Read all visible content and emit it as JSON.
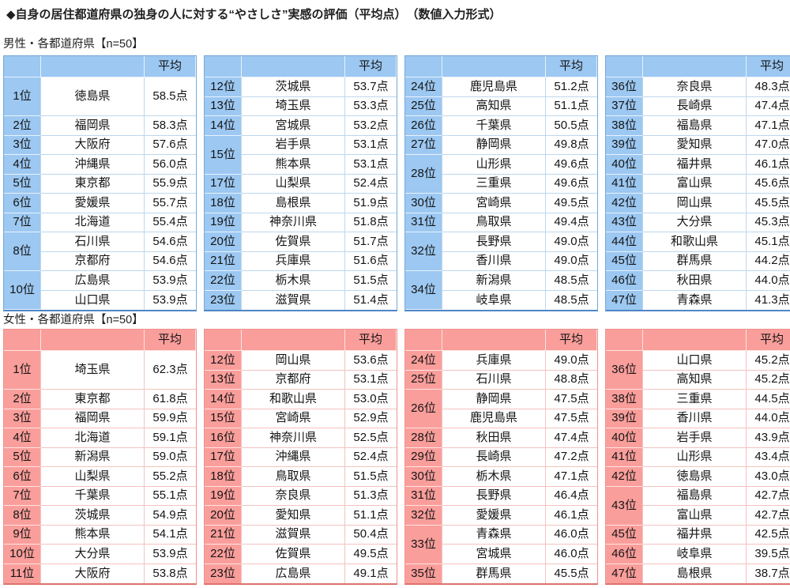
{
  "title": "◆自身の居住都道府県の独身の人に対する“やさしさ”実感の評価（平均点）　（数値入力形式）",
  "sections": [
    {
      "id": "male",
      "label": "男性・各都道府県【n=50】",
      "average_header": "平均",
      "colors": {
        "accent": "#9CC8F2",
        "grid": "#BDD7EE",
        "rank_separator": "#E8F2FC",
        "outer": "#4E86C6",
        "outer_light": "#74A9DC"
      },
      "tables": [
        {
          "groups": [
            {
              "rank": "1位",
              "tall": true,
              "rows": [
                {
                  "pref": "徳島県",
                  "score": "58.5点"
                }
              ]
            },
            {
              "rank": "2位",
              "rows": [
                {
                  "pref": "福岡県",
                  "score": "58.3点"
                }
              ]
            },
            {
              "rank": "3位",
              "rows": [
                {
                  "pref": "大阪府",
                  "score": "57.6点"
                }
              ]
            },
            {
              "rank": "4位",
              "rows": [
                {
                  "pref": "沖縄県",
                  "score": "56.0点"
                }
              ]
            },
            {
              "rank": "5位",
              "rows": [
                {
                  "pref": "東京都",
                  "score": "55.9点"
                }
              ]
            },
            {
              "rank": "6位",
              "rows": [
                {
                  "pref": "愛媛県",
                  "score": "55.7点"
                }
              ]
            },
            {
              "rank": "7位",
              "rows": [
                {
                  "pref": "北海道",
                  "score": "55.4点"
                }
              ]
            },
            {
              "rank": "8位",
              "rows": [
                {
                  "pref": "石川県",
                  "score": "54.6点"
                },
                {
                  "pref": "京都府",
                  "score": "54.6点"
                }
              ]
            },
            {
              "rank": "10位",
              "rows": [
                {
                  "pref": "広島県",
                  "score": "53.9点"
                },
                {
                  "pref": "山口県",
                  "score": "53.9点"
                }
              ]
            }
          ]
        },
        {
          "groups": [
            {
              "rank": "12位",
              "rows": [
                {
                  "pref": "茨城県",
                  "score": "53.7点"
                }
              ]
            },
            {
              "rank": "13位",
              "rows": [
                {
                  "pref": "埼玉県",
                  "score": "53.3点"
                }
              ]
            },
            {
              "rank": "14位",
              "rows": [
                {
                  "pref": "宮城県",
                  "score": "53.2点"
                }
              ]
            },
            {
              "rank": "15位",
              "rows": [
                {
                  "pref": "岩手県",
                  "score": "53.1点"
                },
                {
                  "pref": "熊本県",
                  "score": "53.1点"
                }
              ]
            },
            {
              "rank": "17位",
              "rows": [
                {
                  "pref": "山梨県",
                  "score": "52.4点"
                }
              ]
            },
            {
              "rank": "18位",
              "rows": [
                {
                  "pref": "島根県",
                  "score": "51.9点"
                }
              ]
            },
            {
              "rank": "19位",
              "rows": [
                {
                  "pref": "神奈川県",
                  "score": "51.8点"
                }
              ]
            },
            {
              "rank": "20位",
              "rows": [
                {
                  "pref": "佐賀県",
                  "score": "51.7点"
                }
              ]
            },
            {
              "rank": "21位",
              "rows": [
                {
                  "pref": "兵庫県",
                  "score": "51.6点"
                }
              ]
            },
            {
              "rank": "22位",
              "rows": [
                {
                  "pref": "栃木県",
                  "score": "51.5点"
                }
              ]
            },
            {
              "rank": "23位",
              "rows": [
                {
                  "pref": "滋賀県",
                  "score": "51.4点"
                }
              ]
            }
          ]
        },
        {
          "groups": [
            {
              "rank": "24位",
              "rows": [
                {
                  "pref": "鹿児島県",
                  "score": "51.2点"
                }
              ]
            },
            {
              "rank": "25位",
              "rows": [
                {
                  "pref": "高知県",
                  "score": "51.1点"
                }
              ]
            },
            {
              "rank": "26位",
              "rows": [
                {
                  "pref": "千葉県",
                  "score": "50.5点"
                }
              ]
            },
            {
              "rank": "27位",
              "rows": [
                {
                  "pref": "静岡県",
                  "score": "49.8点"
                }
              ]
            },
            {
              "rank": "28位",
              "rows": [
                {
                  "pref": "山形県",
                  "score": "49.6点"
                },
                {
                  "pref": "三重県",
                  "score": "49.6点"
                }
              ]
            },
            {
              "rank": "30位",
              "rows": [
                {
                  "pref": "宮崎県",
                  "score": "49.5点"
                }
              ]
            },
            {
              "rank": "31位",
              "rows": [
                {
                  "pref": "鳥取県",
                  "score": "49.4点"
                }
              ]
            },
            {
              "rank": "32位",
              "rows": [
                {
                  "pref": "長野県",
                  "score": "49.0点"
                },
                {
                  "pref": "香川県",
                  "score": "49.0点"
                }
              ]
            },
            {
              "rank": "34位",
              "rows": [
                {
                  "pref": "新潟県",
                  "score": "48.5点"
                },
                {
                  "pref": "岐阜県",
                  "score": "48.5点"
                }
              ]
            }
          ]
        },
        {
          "groups": [
            {
              "rank": "36位",
              "rows": [
                {
                  "pref": "奈良県",
                  "score": "48.3点"
                }
              ]
            },
            {
              "rank": "37位",
              "rows": [
                {
                  "pref": "長崎県",
                  "score": "47.4点"
                }
              ]
            },
            {
              "rank": "38位",
              "rows": [
                {
                  "pref": "福島県",
                  "score": "47.1点"
                }
              ]
            },
            {
              "rank": "39位",
              "rows": [
                {
                  "pref": "愛知県",
                  "score": "47.0点"
                }
              ]
            },
            {
              "rank": "40位",
              "rows": [
                {
                  "pref": "福井県",
                  "score": "46.1点"
                }
              ]
            },
            {
              "rank": "41位",
              "rows": [
                {
                  "pref": "富山県",
                  "score": "45.6点"
                }
              ]
            },
            {
              "rank": "42位",
              "rows": [
                {
                  "pref": "岡山県",
                  "score": "45.5点"
                }
              ]
            },
            {
              "rank": "43位",
              "rows": [
                {
                  "pref": "大分県",
                  "score": "45.3点"
                }
              ]
            },
            {
              "rank": "44位",
              "rows": [
                {
                  "pref": "和歌山県",
                  "score": "45.1点"
                }
              ]
            },
            {
              "rank": "45位",
              "rows": [
                {
                  "pref": "群馬県",
                  "score": "44.2点"
                }
              ]
            },
            {
              "rank": "46位",
              "rows": [
                {
                  "pref": "秋田県",
                  "score": "44.0点"
                }
              ]
            },
            {
              "rank": "47位",
              "rows": [
                {
                  "pref": "青森県",
                  "score": "41.3点"
                }
              ]
            }
          ]
        }
      ]
    },
    {
      "id": "female",
      "label": "女性・各都道府県【n=50】",
      "average_header": "平均",
      "colors": {
        "accent": "#FA9E9B",
        "grid": "#F4C3C1",
        "rank_separator": "#FDE4E3",
        "outer": "#DE736D",
        "outer_light": "#ED938E"
      },
      "tables": [
        {
          "groups": [
            {
              "rank": "1位",
              "tall": true,
              "rows": [
                {
                  "pref": "埼玉県",
                  "score": "62.3点"
                }
              ]
            },
            {
              "rank": "2位",
              "rows": [
                {
                  "pref": "東京都",
                  "score": "61.8点"
                }
              ]
            },
            {
              "rank": "3位",
              "rows": [
                {
                  "pref": "福岡県",
                  "score": "59.9点"
                }
              ]
            },
            {
              "rank": "4位",
              "rows": [
                {
                  "pref": "北海道",
                  "score": "59.1点"
                }
              ]
            },
            {
              "rank": "5位",
              "rows": [
                {
                  "pref": "新潟県",
                  "score": "59.0点"
                }
              ]
            },
            {
              "rank": "6位",
              "rows": [
                {
                  "pref": "山梨県",
                  "score": "55.2点"
                }
              ]
            },
            {
              "rank": "7位",
              "rows": [
                {
                  "pref": "千葉県",
                  "score": "55.1点"
                }
              ]
            },
            {
              "rank": "8位",
              "rows": [
                {
                  "pref": "茨城県",
                  "score": "54.9点"
                }
              ]
            },
            {
              "rank": "9位",
              "rows": [
                {
                  "pref": "熊本県",
                  "score": "54.1点"
                }
              ]
            },
            {
              "rank": "10位",
              "rows": [
                {
                  "pref": "大分県",
                  "score": "53.9点"
                }
              ]
            },
            {
              "rank": "11位",
              "rows": [
                {
                  "pref": "大阪府",
                  "score": "53.8点"
                }
              ]
            }
          ]
        },
        {
          "groups": [
            {
              "rank": "12位",
              "rows": [
                {
                  "pref": "岡山県",
                  "score": "53.6点"
                }
              ]
            },
            {
              "rank": "13位",
              "rows": [
                {
                  "pref": "京都府",
                  "score": "53.1点"
                }
              ]
            },
            {
              "rank": "14位",
              "rows": [
                {
                  "pref": "和歌山県",
                  "score": "53.0点"
                }
              ]
            },
            {
              "rank": "15位",
              "rows": [
                {
                  "pref": "宮崎県",
                  "score": "52.9点"
                }
              ]
            },
            {
              "rank": "16位",
              "rows": [
                {
                  "pref": "神奈川県",
                  "score": "52.5点"
                }
              ]
            },
            {
              "rank": "17位",
              "rows": [
                {
                  "pref": "沖縄県",
                  "score": "52.4点"
                }
              ]
            },
            {
              "rank": "18位",
              "rows": [
                {
                  "pref": "鳥取県",
                  "score": "51.5点"
                }
              ]
            },
            {
              "rank": "19位",
              "rows": [
                {
                  "pref": "奈良県",
                  "score": "51.3点"
                }
              ]
            },
            {
              "rank": "20位",
              "rows": [
                {
                  "pref": "愛知県",
                  "score": "51.1点"
                }
              ]
            },
            {
              "rank": "21位",
              "rows": [
                {
                  "pref": "滋賀県",
                  "score": "50.4点"
                }
              ]
            },
            {
              "rank": "22位",
              "rows": [
                {
                  "pref": "佐賀県",
                  "score": "49.5点"
                }
              ]
            },
            {
              "rank": "23位",
              "rows": [
                {
                  "pref": "広島県",
                  "score": "49.1点"
                }
              ]
            }
          ]
        },
        {
          "groups": [
            {
              "rank": "24位",
              "rows": [
                {
                  "pref": "兵庫県",
                  "score": "49.0点"
                }
              ]
            },
            {
              "rank": "25位",
              "rows": [
                {
                  "pref": "石川県",
                  "score": "48.8点"
                }
              ]
            },
            {
              "rank": "26位",
              "rows": [
                {
                  "pref": "静岡県",
                  "score": "47.5点"
                },
                {
                  "pref": "鹿児島県",
                  "score": "47.5点"
                }
              ]
            },
            {
              "rank": "28位",
              "rows": [
                {
                  "pref": "秋田県",
                  "score": "47.4点"
                }
              ]
            },
            {
              "rank": "29位",
              "rows": [
                {
                  "pref": "長崎県",
                  "score": "47.2点"
                }
              ]
            },
            {
              "rank": "30位",
              "rows": [
                {
                  "pref": "栃木県",
                  "score": "47.1点"
                }
              ]
            },
            {
              "rank": "31位",
              "rows": [
                {
                  "pref": "長野県",
                  "score": "46.4点"
                }
              ]
            },
            {
              "rank": "32位",
              "rows": [
                {
                  "pref": "愛媛県",
                  "score": "46.1点"
                }
              ]
            },
            {
              "rank": "33位",
              "rows": [
                {
                  "pref": "青森県",
                  "score": "46.0点"
                },
                {
                  "pref": "宮城県",
                  "score": "46.0点"
                }
              ]
            },
            {
              "rank": "35位",
              "rows": [
                {
                  "pref": "群馬県",
                  "score": "45.5点"
                }
              ]
            }
          ]
        },
        {
          "groups": [
            {
              "rank": "36位",
              "rows": [
                {
                  "pref": "山口県",
                  "score": "45.2点"
                },
                {
                  "pref": "高知県",
                  "score": "45.2点"
                }
              ]
            },
            {
              "rank": "38位",
              "rows": [
                {
                  "pref": "三重県",
                  "score": "44.5点"
                }
              ]
            },
            {
              "rank": "39位",
              "rows": [
                {
                  "pref": "香川県",
                  "score": "44.0点"
                }
              ]
            },
            {
              "rank": "40位",
              "rows": [
                {
                  "pref": "岩手県",
                  "score": "43.9点"
                }
              ]
            },
            {
              "rank": "41位",
              "rows": [
                {
                  "pref": "山形県",
                  "score": "43.4点"
                }
              ]
            },
            {
              "rank": "42位",
              "rows": [
                {
                  "pref": "徳島県",
                  "score": "43.0点"
                }
              ]
            },
            {
              "rank": "43位",
              "rows": [
                {
                  "pref": "福島県",
                  "score": "42.7点"
                },
                {
                  "pref": "富山県",
                  "score": "42.7点"
                }
              ]
            },
            {
              "rank": "45位",
              "rows": [
                {
                  "pref": "福井県",
                  "score": "42.5点"
                }
              ]
            },
            {
              "rank": "46位",
              "rows": [
                {
                  "pref": "岐阜県",
                  "score": "39.5点"
                }
              ]
            },
            {
              "rank": "47位",
              "rows": [
                {
                  "pref": "島根県",
                  "score": "38.7点"
                }
              ]
            }
          ]
        }
      ]
    }
  ]
}
